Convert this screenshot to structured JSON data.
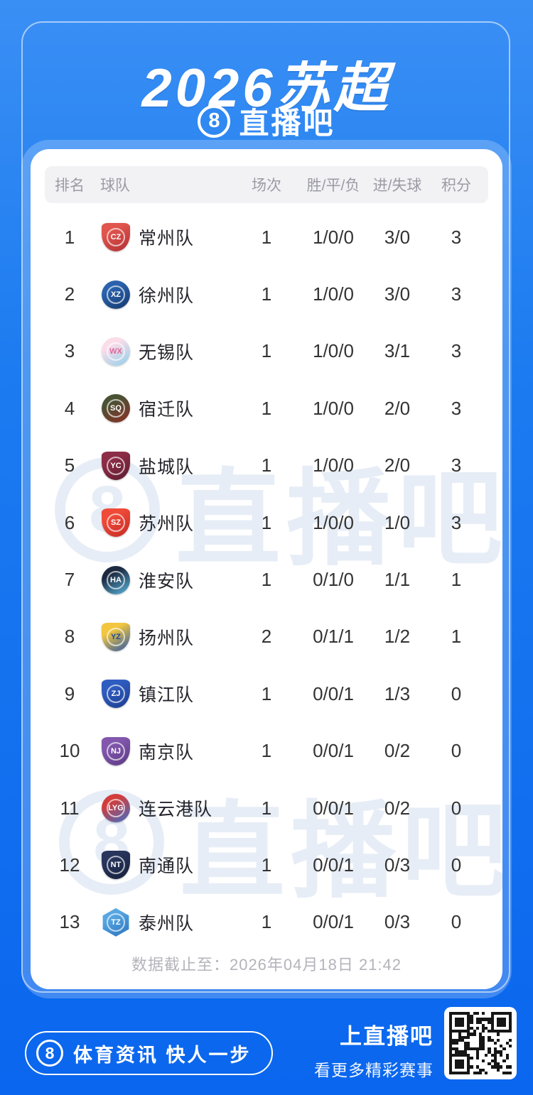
{
  "header": {
    "title": "2026苏超",
    "logo_8": "8",
    "brand": "直播吧"
  },
  "table": {
    "columns": [
      "排名",
      "球队",
      "场次",
      "胜/平/负",
      "进/失球",
      "积分"
    ],
    "rows": [
      {
        "rank": "1",
        "team": "常州队",
        "played": "1",
        "wdl": "1/0/0",
        "goals": "3/0",
        "points": "3",
        "logo": {
          "shape": "shield",
          "c1": "#e0554d",
          "c2": "#b02f34",
          "abbr": "CZ",
          "abbr_color": "#ffffff"
        }
      },
      {
        "rank": "2",
        "team": "徐州队",
        "played": "1",
        "wdl": "1/0/0",
        "goals": "3/0",
        "points": "3",
        "logo": {
          "shape": "circle",
          "c1": "#2a62ad",
          "c2": "#16396e",
          "abbr": "XZ",
          "abbr_color": "#ffffff"
        }
      },
      {
        "rank": "3",
        "team": "无锡队",
        "played": "1",
        "wdl": "1/0/0",
        "goals": "3/1",
        "points": "3",
        "logo": {
          "shape": "circle",
          "c1": "#fbdce9",
          "c2": "#8fd0ea",
          "abbr": "WX",
          "abbr_color": "#e2679a"
        }
      },
      {
        "rank": "4",
        "team": "宿迁队",
        "played": "1",
        "wdl": "1/0/0",
        "goals": "2/0",
        "points": "3",
        "logo": {
          "shape": "circle",
          "c1": "#4a5234",
          "c2": "#8c2f25",
          "abbr": "SQ",
          "abbr_color": "#ffffff"
        }
      },
      {
        "rank": "5",
        "team": "盐城队",
        "played": "1",
        "wdl": "1/0/0",
        "goals": "2/0",
        "points": "3",
        "logo": {
          "shape": "shield",
          "c1": "#8d2c47",
          "c2": "#5c1c30",
          "abbr": "YC",
          "abbr_color": "#ffffff"
        }
      },
      {
        "rank": "6",
        "team": "苏州队",
        "played": "1",
        "wdl": "1/0/0",
        "goals": "1/0",
        "points": "3",
        "logo": {
          "shape": "shield",
          "c1": "#ef4a38",
          "c2": "#c62c26",
          "abbr": "SZ",
          "abbr_color": "#ffffff"
        }
      },
      {
        "rank": "7",
        "team": "淮安队",
        "played": "1",
        "wdl": "0/1/0",
        "goals": "1/1",
        "points": "1",
        "logo": {
          "shape": "circle",
          "c1": "#1b2940",
          "c2": "#59b7e0",
          "abbr": "HA",
          "abbr_color": "#ffffff"
        }
      },
      {
        "rank": "8",
        "team": "扬州队",
        "played": "2",
        "wdl": "0/1/1",
        "goals": "1/2",
        "points": "1",
        "logo": {
          "shape": "shield",
          "c1": "#f2c63e",
          "c2": "#2a56a8",
          "abbr": "YZ",
          "abbr_color": "#1f4a9c"
        }
      },
      {
        "rank": "9",
        "team": "镇江队",
        "played": "1",
        "wdl": "0/0/1",
        "goals": "1/3",
        "points": "0",
        "logo": {
          "shape": "shield",
          "c1": "#2f5cc0",
          "c2": "#1d3d8f",
          "abbr": "ZJ",
          "abbr_color": "#ffffff"
        }
      },
      {
        "rank": "10",
        "team": "南京队",
        "played": "1",
        "wdl": "0/0/1",
        "goals": "0/2",
        "points": "0",
        "logo": {
          "shape": "shield",
          "c1": "#8257ad",
          "c2": "#5d3a85",
          "abbr": "NJ",
          "abbr_color": "#ffffff"
        }
      },
      {
        "rank": "11",
        "team": "连云港队",
        "played": "1",
        "wdl": "0/0/1",
        "goals": "0/2",
        "points": "0",
        "logo": {
          "shape": "circle",
          "c1": "#d23c3c",
          "c2": "#3f6fc8",
          "abbr": "LYG",
          "abbr_color": "#ffffff"
        }
      },
      {
        "rank": "12",
        "team": "南通队",
        "played": "1",
        "wdl": "0/0/1",
        "goals": "0/3",
        "points": "0",
        "logo": {
          "shape": "shield",
          "c1": "#28355c",
          "c2": "#16203c",
          "abbr": "NT",
          "abbr_color": "#ffffff"
        }
      },
      {
        "rank": "13",
        "team": "泰州队",
        "played": "1",
        "wdl": "0/0/1",
        "goals": "0/3",
        "points": "0",
        "logo": {
          "shape": "hex",
          "c1": "#57a7e2",
          "c2": "#2a73bd",
          "abbr": "TZ",
          "abbr_color": "#ffffff"
        }
      }
    ],
    "note": "数据截止至：2026年04月18日 21:42"
  },
  "watermark": {
    "logo_8": "8",
    "text": "直播吧"
  },
  "footer": {
    "logo_8": "8",
    "slogan": "体育资讯 快人一步",
    "cta_title": "上直播吧",
    "cta_sub": "看更多精彩赛事"
  },
  "colors": {
    "page_bg_top": "#3a8ff4",
    "page_bg_bottom": "#0a66ee",
    "card_bg": "#ffffff",
    "table_header_bg": "#f2f2f5",
    "muted_text": "#9b9ba4",
    "row_text": "#333333",
    "watermark": "#e7edf6"
  }
}
